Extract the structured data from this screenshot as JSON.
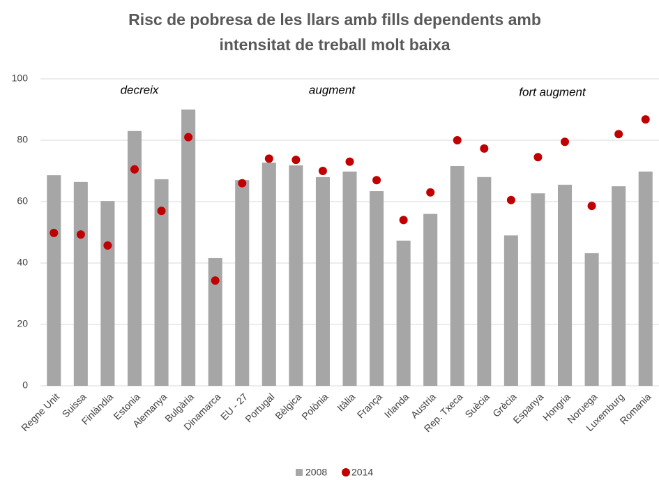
{
  "chart_data": {
    "type": "bar",
    "title": [
      "Risc de pobresa de les llars amb fills dependents amb",
      "intensitat de treball molt baixa"
    ],
    "annotations": [
      "decreix",
      "augment",
      "fort augment"
    ],
    "categories": [
      "Regne Unit",
      "Suissa",
      "Finlàndia",
      "Estonia",
      "Alemanya",
      "Bulgària",
      "Dinamarca",
      "EU - 27",
      "Portugal",
      "Bèlgica",
      "Polònia",
      "Itàlia",
      "França",
      "Irlanda",
      "Austria",
      "Rep. Txeca",
      "Suècia",
      "Grècia",
      "Espanya",
      "Hongria",
      "Noruega",
      "Luxemburg",
      "Romania"
    ],
    "series": [
      {
        "name": "2008",
        "type": "bar",
        "color": "#a6a6a6",
        "values": [
          68.6,
          66.4,
          60.2,
          83,
          67.3,
          90,
          41.6,
          67,
          72.7,
          71.8,
          68,
          69.8,
          63.4,
          47.3,
          56,
          71.6,
          68,
          49,
          62.7,
          65.5,
          43.2,
          65,
          69.8
        ]
      },
      {
        "name": "2014",
        "type": "scatter",
        "color": "#c00000",
        "values": [
          49.8,
          49.3,
          45.7,
          70.5,
          57,
          81,
          34.3,
          66,
          74,
          73.6,
          70,
          73,
          67,
          54,
          63,
          80,
          77.3,
          60.5,
          74.5,
          79.5,
          58.6,
          82,
          86.8
        ]
      }
    ],
    "ylim": [
      0,
      100
    ],
    "yticks": [
      0,
      20,
      40,
      60,
      80,
      100
    ],
    "grid": true,
    "legend": "bottom"
  }
}
